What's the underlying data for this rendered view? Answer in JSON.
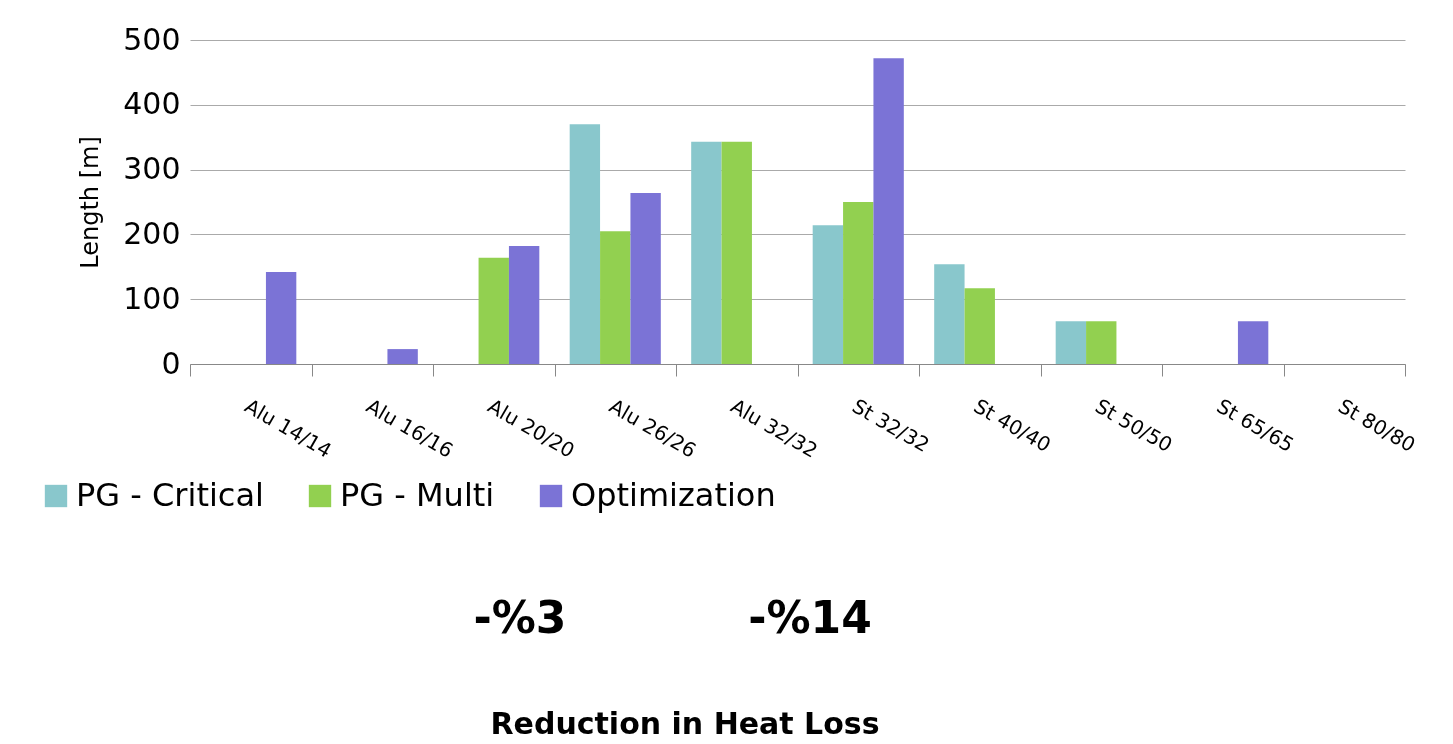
{
  "chart_data": {
    "type": "bar",
    "ylabel": "Length [m]",
    "categories": [
      "Alu 14/14",
      "Alu 16/16",
      "Alu 20/20",
      "Alu 26/26",
      "Alu 32/32",
      "St 32/32",
      "St 40/40",
      "St 50/50",
      "St 65/65",
      "St 80/80"
    ],
    "series": [
      {
        "name": "PG - Critical",
        "color": "#89c7cc",
        "values": [
          null,
          null,
          null,
          370,
          343,
          214,
          154,
          66,
          null,
          null
        ]
      },
      {
        "name": "PG - Multi",
        "color": "#92d050",
        "values": [
          null,
          null,
          164,
          205,
          343,
          250,
          117,
          66,
          null,
          null
        ]
      },
      {
        "name": "Optimization",
        "color": "#7b73d6",
        "values": [
          142,
          23,
          182,
          264,
          null,
          472,
          null,
          null,
          66,
          null
        ]
      }
    ],
    "ylim": [
      0,
      500
    ],
    "yticks": [
      0,
      100,
      200,
      300,
      400,
      500
    ],
    "grid": "y",
    "legend": "bottom",
    "annotations": [
      "-%3",
      "-%14",
      "Reduction in Heat Loss"
    ]
  }
}
